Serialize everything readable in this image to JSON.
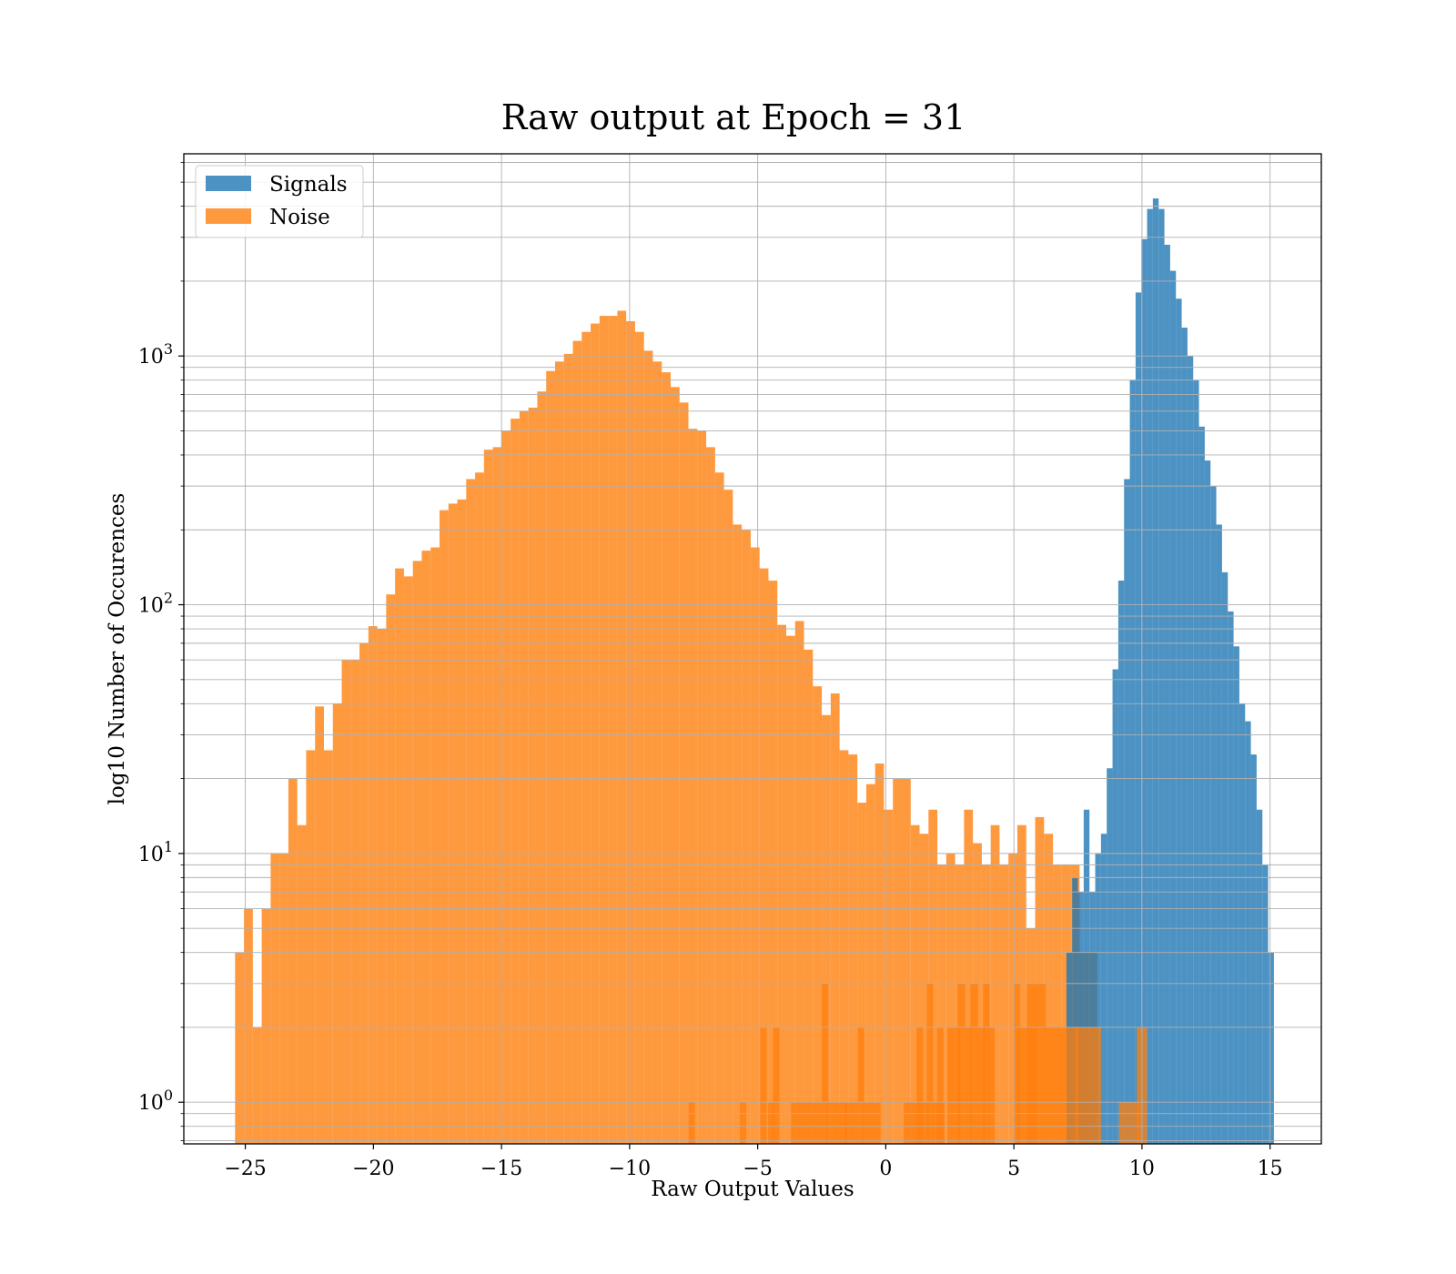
{
  "chart_data": {
    "type": "histogram",
    "title": "Raw output at Epoch = 31",
    "xlabel": "Raw Output Values",
    "ylabel": "log10 Number of Occurences",
    "xlim": [
      -27.4,
      17
    ],
    "ylim": [
      0.68,
      6500
    ],
    "y_scale": "log",
    "grid": true,
    "legend_position": "top-left",
    "x_ticks": [
      {
        "value": -25,
        "label": "−25"
      },
      {
        "value": -20,
        "label": "−20"
      },
      {
        "value": -15,
        "label": "−15"
      },
      {
        "value": -10,
        "label": "−10"
      },
      {
        "value": -5,
        "label": "−5"
      },
      {
        "value": 0,
        "label": "0"
      },
      {
        "value": 5,
        "label": "5"
      },
      {
        "value": 10,
        "label": "10"
      },
      {
        "value": 15,
        "label": "15"
      }
    ],
    "y_ticks": [
      {
        "value": 1,
        "base": "10",
        "exp": "0"
      },
      {
        "value": 10,
        "base": "10",
        "exp": "1"
      },
      {
        "value": 100,
        "base": "10",
        "exp": "2"
      },
      {
        "value": 1000,
        "base": "10",
        "exp": "3"
      }
    ],
    "series": [
      {
        "name": "Signals",
        "color": "#1f77b4",
        "opacity": 0.8,
        "bin_width": 0.225,
        "x_start": 7.05,
        "counts": [
          4,
          8,
          7,
          15,
          7,
          10,
          12,
          22,
          55,
          125,
          320,
          800,
          1800,
          2950,
          3900,
          4300,
          3900,
          2800,
          2200,
          1700,
          1300,
          1000,
          800,
          520,
          380,
          300,
          210,
          135,
          94,
          68,
          40,
          34,
          25,
          15,
          9,
          4
        ]
      },
      {
        "name": "Noise",
        "color": "#ff7f0e",
        "opacity": 0.8,
        "bin_width": 0.347,
        "x_start": -25.4,
        "counts": [
          4,
          6,
          2,
          6,
          10,
          10,
          20,
          13,
          26,
          39,
          26,
          40,
          60,
          60,
          70,
          82,
          80,
          110,
          140,
          130,
          150,
          165,
          170,
          240,
          255,
          265,
          320,
          340,
          420,
          430,
          500,
          560,
          600,
          620,
          720,
          870,
          950,
          1020,
          1150,
          1250,
          1350,
          1450,
          1450,
          1520,
          1380,
          1250,
          1050,
          950,
          860,
          750,
          650,
          510,
          500,
          430,
          340,
          290,
          210,
          200,
          170,
          140,
          125,
          83,
          75,
          86,
          66,
          47,
          36,
          44,
          26,
          25,
          16,
          19,
          23,
          15,
          20,
          20,
          13,
          12,
          15,
          9,
          10,
          9,
          15,
          11,
          9,
          13,
          9,
          10,
          13,
          5,
          14,
          12,
          9,
          9,
          9,
          4,
          4
        ],
        "sparse_bins": [
          {
            "x": -7.7,
            "width": 0.25,
            "count": 1
          },
          {
            "x": -5.7,
            "width": 0.25,
            "count": 1
          },
          {
            "x": -4.9,
            "width": 0.25,
            "count": 2
          },
          {
            "x": -4.6,
            "width": 0.25,
            "count": 1
          },
          {
            "x": -4.4,
            "width": 0.25,
            "count": 2
          },
          {
            "x": -3.7,
            "width": 1.2,
            "count": 1
          },
          {
            "x": -2.5,
            "width": 0.25,
            "count": 3
          },
          {
            "x": -2.3,
            "width": 0.8,
            "count": 1
          },
          {
            "x": -1.6,
            "width": 0.5,
            "count": 1
          },
          {
            "x": -1.1,
            "width": 0.25,
            "count": 2
          },
          {
            "x": -0.9,
            "width": 0.7,
            "count": 1
          },
          {
            "x": 0.7,
            "width": 1.0,
            "count": 1
          },
          {
            "x": 1.2,
            "width": 0.25,
            "count": 2
          },
          {
            "x": 1.6,
            "width": 0.25,
            "count": 3
          },
          {
            "x": 1.8,
            "width": 0.5,
            "count": 1
          },
          {
            "x": 2.0,
            "width": 0.25,
            "count": 2
          },
          {
            "x": 2.4,
            "width": 0.5,
            "count": 2
          },
          {
            "x": 2.8,
            "width": 0.3,
            "count": 3
          },
          {
            "x": 3.1,
            "width": 0.25,
            "count": 2
          },
          {
            "x": 3.3,
            "width": 0.3,
            "count": 3
          },
          {
            "x": 3.6,
            "width": 0.3,
            "count": 2
          },
          {
            "x": 3.8,
            "width": 0.25,
            "count": 3
          },
          {
            "x": 4.0,
            "width": 0.25,
            "count": 2
          },
          {
            "x": 5.0,
            "width": 0.25,
            "count": 3
          },
          {
            "x": 5.1,
            "width": 0.8,
            "count": 2
          },
          {
            "x": 5.5,
            "width": 0.5,
            "count": 3
          },
          {
            "x": 6.0,
            "width": 0.25,
            "count": 3
          },
          {
            "x": 6.2,
            "width": 1.3,
            "count": 2
          },
          {
            "x": 7.4,
            "width": 1.0,
            "count": 2
          },
          {
            "x": 9.1,
            "width": 0.8,
            "count": 1
          },
          {
            "x": 9.8,
            "width": 0.4,
            "count": 2
          }
        ]
      }
    ]
  }
}
